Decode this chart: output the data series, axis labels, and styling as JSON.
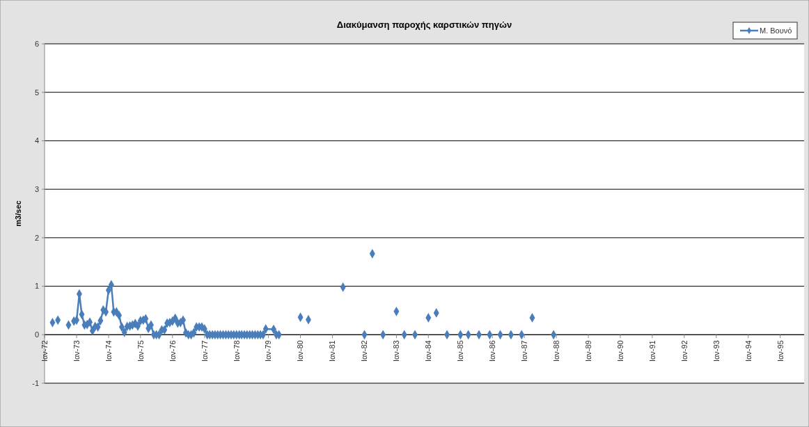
{
  "chart_data": {
    "type": "line",
    "title": "Διακύμανση παροχής καρστικών πηγών",
    "ylabel": "m3/sec",
    "xlim": [
      "1972-01",
      "1995-10"
    ],
    "ylim": [
      -1,
      6
    ],
    "yticks": [
      -1,
      0,
      1,
      2,
      3,
      4,
      5,
      6
    ],
    "xticks": [
      {
        "value": "1972-01",
        "label": "Ιαν-72"
      },
      {
        "value": "1973-01",
        "label": "Ιαν-73"
      },
      {
        "value": "1974-01",
        "label": "Ιαν-74"
      },
      {
        "value": "1975-01",
        "label": "Ιαν-75"
      },
      {
        "value": "1976-01",
        "label": "Ιαν-76"
      },
      {
        "value": "1977-01",
        "label": "Ιαν-77"
      },
      {
        "value": "1978-01",
        "label": "Ιαν-78"
      },
      {
        "value": "1979-01",
        "label": "Ιαν-79"
      },
      {
        "value": "1980-01",
        "label": "Ιαν-80"
      },
      {
        "value": "1981-01",
        "label": "Ιαν-81"
      },
      {
        "value": "1982-01",
        "label": "Ιαν-82"
      },
      {
        "value": "1983-01",
        "label": "Ιαν-83"
      },
      {
        "value": "1984-01",
        "label": "Ιαν-84"
      },
      {
        "value": "1985-01",
        "label": "Ιαν-85"
      },
      {
        "value": "1986-01",
        "label": "Ιαν-86"
      },
      {
        "value": "1987-01",
        "label": "Ιαν-87"
      },
      {
        "value": "1988-01",
        "label": "Ιαν-88"
      },
      {
        "value": "1989-01",
        "label": "Ιαν-89"
      },
      {
        "value": "1990-01",
        "label": "Ιαν-90"
      },
      {
        "value": "1991-01",
        "label": "Ιαν-91"
      },
      {
        "value": "1992-01",
        "label": "Ιαν-92"
      },
      {
        "value": "1993-01",
        "label": "Ιαν-93"
      },
      {
        "value": "1994-01",
        "label": "Ιαν-94"
      },
      {
        "value": "1995-01",
        "label": "Ιαν-95"
      }
    ],
    "grid": "y",
    "legend": "top right",
    "marker": "diamond",
    "line_style": "solid",
    "series": [
      {
        "name": "Μ. Βουνό",
        "color": "#4a7ebb",
        "x": [
          "1972-04",
          "1972-05",
          "1972-06",
          "1972-07",
          "1972-10",
          "1972-11",
          "1972-12",
          "1973-01",
          "1973-02",
          "1973-03",
          "1973-04",
          "1973-05",
          "1973-06",
          "1973-07",
          "1973-08",
          "1973-09",
          "1973-10",
          "1973-11",
          "1973-12",
          "1974-01",
          "1974-02",
          "1974-03",
          "1974-04",
          "1974-05",
          "1974-06",
          "1974-07",
          "1974-08",
          "1974-09",
          "1974-10",
          "1974-11",
          "1974-12",
          "1975-01",
          "1975-02",
          "1975-03",
          "1975-04",
          "1975-05",
          "1975-06",
          "1975-07",
          "1975-08",
          "1975-09",
          "1975-10",
          "1975-11",
          "1975-12",
          "1976-01",
          "1976-02",
          "1976-03",
          "1976-04",
          "1976-05",
          "1976-06",
          "1976-07",
          "1976-08",
          "1976-09",
          "1976-10",
          "1976-11",
          "1976-12",
          "1977-01",
          "1977-02",
          "1977-03",
          "1977-04",
          "1977-05",
          "1977-06",
          "1977-07",
          "1977-08",
          "1977-09",
          "1977-10",
          "1977-11",
          "1977-12",
          "1978-01",
          "1978-02",
          "1978-03",
          "1978-04",
          "1978-05",
          "1978-06",
          "1978-07",
          "1978-08",
          "1978-09",
          "1978-10",
          "1978-11",
          "1978-12",
          "1979-03",
          "1979-04",
          "1979-05",
          "1979-06",
          "1980-01",
          "1980-02",
          "1980-04",
          "1980-05",
          "1981-05",
          "1981-06",
          "1982-01",
          "1982-02",
          "1982-04",
          "1982-05",
          "1982-08",
          "1982-09",
          "1983-01",
          "1983-02",
          "1983-04",
          "1983-05",
          "1983-08",
          "1983-09",
          "1984-01",
          "1984-02",
          "1984-04",
          "1984-05",
          "1984-08",
          "1984-09",
          "1985-01",
          "1985-02",
          "1985-04",
          "1985-05",
          "1985-08",
          "1985-09",
          "1985-12",
          "1986-01",
          "1986-04",
          "1986-05",
          "1986-08",
          "1986-09",
          "1986-12",
          "1987-01",
          "1987-04",
          "1987-05",
          "1987-12"
        ],
        "values": [
          0.25,
          null,
          0.3,
          null,
          0.2,
          null,
          0.28,
          0.3,
          0.84,
          0.42,
          0.2,
          0.21,
          0.26,
          0.08,
          0.17,
          0.16,
          0.29,
          0.51,
          0.47,
          0.92,
          1.03,
          0.47,
          0.47,
          0.4,
          0.16,
          0.05,
          0.17,
          0.18,
          0.2,
          0.23,
          0.18,
          0.29,
          0.3,
          0.33,
          0.13,
          0.2,
          0,
          0,
          0,
          0.1,
          0.1,
          0.24,
          0.25,
          0.28,
          0.34,
          0.24,
          0.25,
          0.3,
          0.04,
          0,
          0,
          0.04,
          0.16,
          0.16,
          0.16,
          0.12,
          0,
          0,
          0,
          0,
          0,
          0,
          0,
          0,
          0,
          0,
          0,
          0,
          0,
          0,
          0,
          0,
          0,
          0,
          0,
          0,
          0,
          0,
          0.12,
          0.11,
          0,
          0,
          null,
          0.36,
          null,
          0.31,
          null,
          0.98,
          null,
          0,
          null,
          1.67,
          null,
          0,
          null,
          0.48,
          null,
          0,
          null,
          0,
          null,
          0.35,
          null,
          0.45,
          null,
          0,
          null,
          0,
          null,
          0,
          null,
          0,
          null,
          0,
          null,
          0,
          null,
          0,
          null,
          0,
          null,
          0.35,
          null,
          0
        ]
      }
    ]
  }
}
